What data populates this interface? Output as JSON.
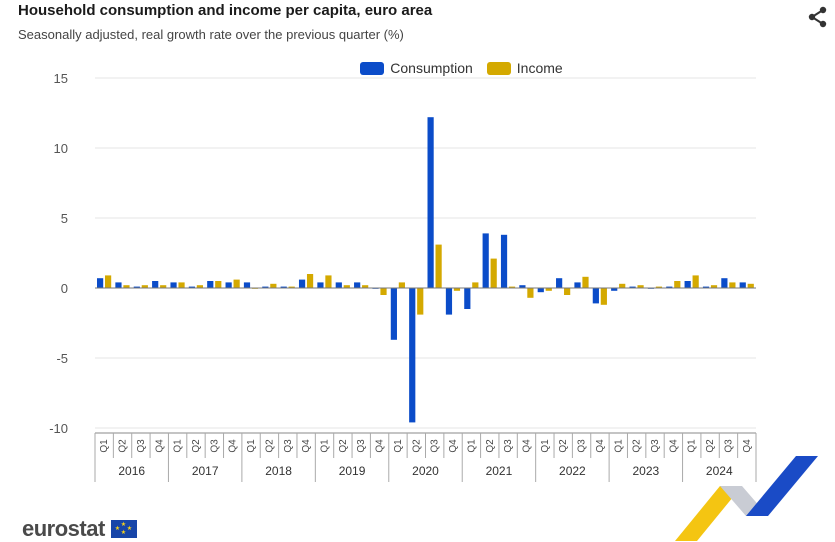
{
  "header": {
    "title": "Household consumption and income per capita, euro area",
    "subtitle": "Seasonally adjusted, real growth rate over the previous quarter (%)"
  },
  "icons": {
    "share": "share-icon",
    "flag": "eu-flag-icon"
  },
  "brand": {
    "logo_text": "eurostat"
  },
  "colors": {
    "consumption": "#0b4cc9",
    "income": "#d4a900",
    "grid": "#e4e4e4",
    "axis": "#888888"
  },
  "chart_data": {
    "type": "bar",
    "ylim": [
      -10,
      15
    ],
    "yticks": [
      15,
      10,
      5,
      0,
      -5,
      -10
    ],
    "grid": true,
    "legend_position": "top",
    "quarters": [
      "Q1",
      "Q2",
      "Q3",
      "Q4"
    ],
    "years": [
      "2016",
      "2017",
      "2018",
      "2019",
      "2020",
      "2021",
      "2022",
      "2023",
      "2024"
    ],
    "series": [
      {
        "name": "Consumption",
        "values": [
          0.7,
          0.4,
          0.1,
          0.5,
          0.4,
          0.1,
          0.5,
          0.4,
          0.4,
          0.1,
          0.1,
          0.6,
          0.4,
          0.4,
          0.4,
          0.0,
          -3.7,
          -9.6,
          12.2,
          -1.9,
          -1.5,
          3.9,
          3.8,
          0.2,
          -0.3,
          0.7,
          0.4,
          -1.1,
          -0.2,
          0.1,
          0.0,
          0.1,
          0.5,
          0.1,
          0.7,
          0.4
        ]
      },
      {
        "name": "Income",
        "values": [
          0.9,
          0.2,
          0.2,
          0.2,
          0.4,
          0.2,
          0.5,
          0.6,
          0.0,
          0.3,
          0.1,
          1.0,
          0.9,
          0.2,
          0.2,
          -0.5,
          0.4,
          -1.9,
          3.1,
          -0.2,
          0.4,
          2.1,
          0.1,
          -0.7,
          -0.2,
          -0.5,
          0.8,
          -1.2,
          0.3,
          0.2,
          0.1,
          0.5,
          0.9,
          0.2,
          0.4,
          0.3
        ]
      }
    ]
  }
}
